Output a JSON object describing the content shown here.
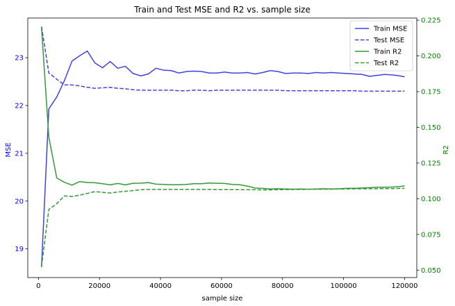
{
  "chart_data": {
    "type": "line",
    "title": "Train and Test MSE and R2 vs. sample size",
    "xlabel": "sample size",
    "ylabel_left": "MSE",
    "ylabel_right": "R2",
    "xlim": [
      -3500,
      124000
    ],
    "ylim_left": [
      18.4,
      23.83
    ],
    "ylim_right": [
      0.0448,
      0.2265
    ],
    "x_ticks": [
      0,
      20000,
      40000,
      60000,
      80000,
      100000,
      120000
    ],
    "x_tick_labels": [
      "0",
      "20000",
      "40000",
      "60000",
      "80000",
      "100000",
      "120000"
    ],
    "y_left_ticks": [
      19,
      20,
      21,
      22,
      23
    ],
    "y_left_tick_labels": [
      "19",
      "20",
      "21",
      "22",
      "23"
    ],
    "y_right_ticks": [
      0.05,
      0.075,
      0.1,
      0.125,
      0.15,
      0.175,
      0.2,
      0.225
    ],
    "y_right_tick_labels": [
      "0.050",
      "0.075",
      "0.100",
      "0.125",
      "0.150",
      "0.175",
      "0.200",
      "0.225"
    ],
    "left_axis_color": "#0000ff",
    "right_axis_color": "#008000",
    "grid": false,
    "legend_position": "top-right",
    "series": [
      {
        "name": "Train MSE",
        "axis": "left",
        "color": "#4040e6",
        "dash": "solid",
        "x": [
          1000,
          3400,
          6000,
          8500,
          11000,
          13500,
          16000,
          18500,
          21000,
          23500,
          26000,
          28500,
          31000,
          33500,
          36000,
          38500,
          41000,
          43500,
          46000,
          48500,
          51000,
          53500,
          56000,
          58500,
          61000,
          63500,
          66000,
          68500,
          71000,
          73500,
          76000,
          78500,
          81000,
          83500,
          86000,
          88500,
          91000,
          93500,
          96000,
          98500,
          101000,
          103500,
          106000,
          108500,
          111000,
          113500,
          116000,
          118500,
          120000
        ],
        "values": [
          18.62,
          21.93,
          22.18,
          22.52,
          22.93,
          23.04,
          23.14,
          22.89,
          22.79,
          22.92,
          22.78,
          22.82,
          22.67,
          22.62,
          22.66,
          22.78,
          22.74,
          22.73,
          22.68,
          22.71,
          22.72,
          22.71,
          22.68,
          22.68,
          22.7,
          22.68,
          22.68,
          22.69,
          22.66,
          22.69,
          22.73,
          22.71,
          22.67,
          22.68,
          22.68,
          22.67,
          22.69,
          22.68,
          22.69,
          22.68,
          22.67,
          22.66,
          22.65,
          22.61,
          22.63,
          22.65,
          22.64,
          22.62,
          22.6
        ]
      },
      {
        "name": "Test MSE",
        "axis": "left",
        "color": "#4040e6",
        "dash": "dashed",
        "x": [
          1000,
          3400,
          6000,
          8500,
          11000,
          13500,
          16000,
          18500,
          21000,
          23500,
          26000,
          28500,
          31000,
          33500,
          36000,
          38500,
          41000,
          43500,
          46000,
          48500,
          51000,
          53500,
          56000,
          58500,
          61000,
          63500,
          66000,
          68500,
          71000,
          73500,
          76000,
          78500,
          81000,
          83500,
          86000,
          88500,
          91000,
          93500,
          96000,
          98500,
          101000,
          103500,
          106000,
          108500,
          111000,
          113500,
          116000,
          118500,
          120000
        ],
        "values": [
          23.65,
          22.68,
          22.55,
          22.43,
          22.43,
          22.41,
          22.38,
          22.36,
          22.37,
          22.38,
          22.36,
          22.35,
          22.33,
          22.32,
          22.32,
          22.32,
          22.32,
          22.32,
          22.31,
          22.31,
          22.32,
          22.32,
          22.31,
          22.32,
          22.32,
          22.32,
          22.32,
          22.32,
          22.32,
          22.32,
          22.32,
          22.32,
          22.31,
          22.31,
          22.31,
          22.31,
          22.31,
          22.31,
          22.31,
          22.31,
          22.31,
          22.31,
          22.3,
          22.3,
          22.3,
          22.3,
          22.3,
          22.3,
          22.3
        ]
      },
      {
        "name": "Train R2",
        "axis": "right",
        "color": "#339933",
        "dash": "solid",
        "x": [
          1000,
          3400,
          6000,
          8500,
          11000,
          13500,
          16000,
          18500,
          21000,
          23500,
          26000,
          28500,
          31000,
          33500,
          36000,
          38500,
          41000,
          43500,
          46000,
          48500,
          51000,
          53500,
          56000,
          58500,
          61000,
          63500,
          66000,
          68500,
          71000,
          73500,
          76000,
          78500,
          81000,
          83500,
          86000,
          88500,
          91000,
          93500,
          96000,
          98500,
          101000,
          103500,
          106000,
          108500,
          111000,
          113500,
          116000,
          118500,
          120000
        ],
        "values": [
          0.22,
          0.143,
          0.1145,
          0.1115,
          0.1095,
          0.112,
          0.1113,
          0.1112,
          0.1105,
          0.1097,
          0.1107,
          0.1097,
          0.1108,
          0.1109,
          0.1113,
          0.1102,
          0.11,
          0.1098,
          0.1098,
          0.11,
          0.1105,
          0.1105,
          0.111,
          0.1108,
          0.1107,
          0.11,
          0.1098,
          0.1088,
          0.1075,
          0.1072,
          0.1068,
          0.107,
          0.1068,
          0.1067,
          0.1068,
          0.1067,
          0.1068,
          0.107,
          0.1068,
          0.107,
          0.1073,
          0.1073,
          0.1075,
          0.1077,
          0.108,
          0.108,
          0.1082,
          0.1085,
          0.109
        ]
      },
      {
        "name": "Test R2",
        "axis": "right",
        "color": "#339933",
        "dash": "dashed",
        "x": [
          1000,
          3400,
          6000,
          8500,
          11000,
          13500,
          16000,
          18500,
          21000,
          23500,
          26000,
          28500,
          31000,
          33500,
          36000,
          38500,
          41000,
          43500,
          46000,
          48500,
          51000,
          53500,
          56000,
          58500,
          61000,
          63500,
          66000,
          68500,
          71000,
          73500,
          76000,
          78500,
          81000,
          83500,
          86000,
          88500,
          91000,
          93500,
          96000,
          98500,
          101000,
          103500,
          106000,
          108500,
          111000,
          113500,
          116000,
          118500,
          120000
        ],
        "values": [
          0.0525,
          0.0925,
          0.0965,
          0.102,
          0.1015,
          0.1025,
          0.1037,
          0.105,
          0.1045,
          0.104,
          0.1047,
          0.1052,
          0.1057,
          0.1063,
          0.1065,
          0.1065,
          0.1065,
          0.1065,
          0.1065,
          0.1065,
          0.1065,
          0.1065,
          0.1065,
          0.1064,
          0.1064,
          0.1064,
          0.1063,
          0.1063,
          0.1063,
          0.1062,
          0.1062,
          0.1063,
          0.1064,
          0.1065,
          0.1065,
          0.1066,
          0.1066,
          0.1067,
          0.1067,
          0.1068,
          0.1068,
          0.1069,
          0.1069,
          0.107,
          0.107,
          0.1071,
          0.1071,
          0.1072,
          0.1072
        ]
      }
    ]
  }
}
